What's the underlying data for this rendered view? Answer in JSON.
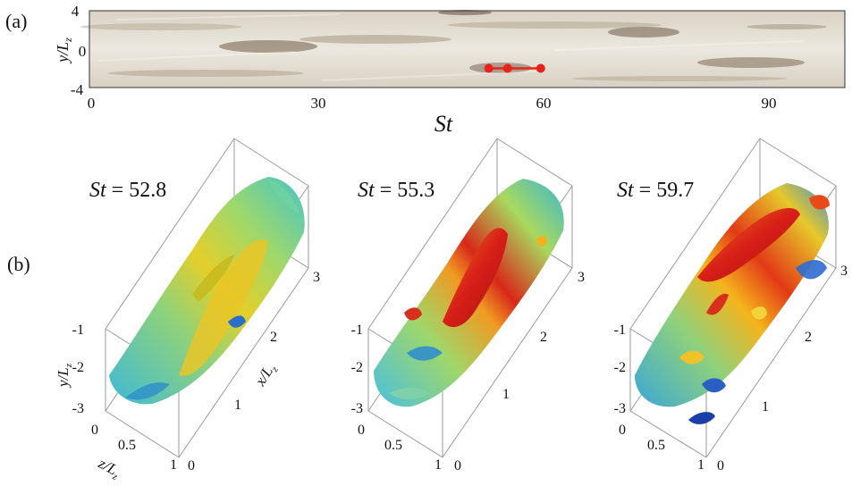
{
  "panel_a": {
    "label": "(a)",
    "ylabel": "y/L",
    "ylabel_sub": "z",
    "xlabel": "St",
    "yticks": [
      "4",
      "0",
      "-4"
    ],
    "xticks": [
      "0",
      "30",
      "60",
      "90"
    ],
    "marker_st": [
      52.8,
      55.3,
      59.7
    ],
    "marker_y": -2.0,
    "marker_color": "#e8231c"
  },
  "panel_b": {
    "label": "(b)",
    "snapshots": [
      {
        "st_label": "St",
        "st_value": "= 52.8"
      },
      {
        "st_label": "St",
        "st_value": "= 55.3"
      },
      {
        "st_label": "St",
        "st_value": "= 59.7"
      }
    ],
    "y_axis_label": "y/L",
    "y_axis_sub": "z",
    "x_axis_label": "x/L",
    "x_axis_sub": "z",
    "z_axis_label": "z/L",
    "z_axis_sub": "z",
    "yticks": [
      "-1",
      "-2",
      "-3"
    ],
    "xticks": [
      "1",
      "2",
      "3"
    ],
    "zticks": [
      "0",
      "0.5",
      "1"
    ],
    "zero_tick": "0"
  }
}
